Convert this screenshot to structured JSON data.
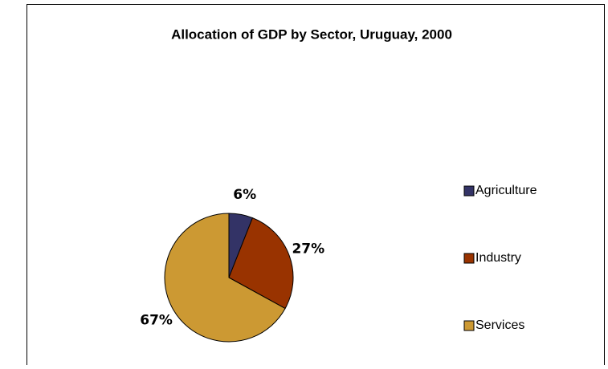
{
  "chart_data": {
    "type": "pie",
    "title": "Allocation of GDP by Sector, Uruguay, 2000",
    "categories": [
      "Agriculture",
      "Industry",
      "Services"
    ],
    "values": [
      6,
      27,
      67
    ],
    "value_labels": [
      "6%",
      "27%",
      "67%"
    ],
    "colors": [
      "#333366",
      "#993300",
      "#cc9933"
    ],
    "legend": "right"
  }
}
